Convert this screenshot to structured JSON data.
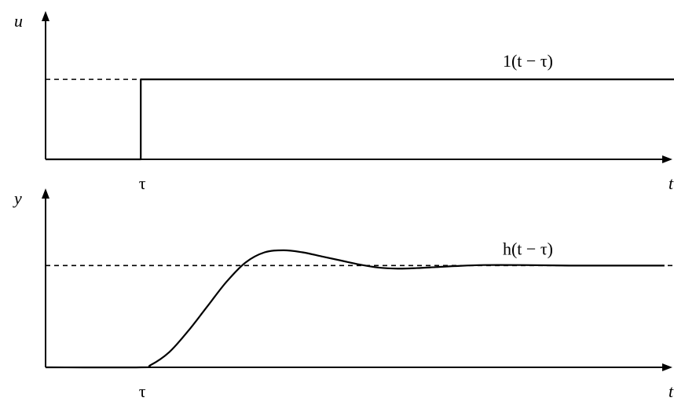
{
  "chart_data": [
    {
      "type": "line",
      "ylabel": "u",
      "xlabel": "t",
      "tick_label": "τ",
      "series_label": "1(t − τ)",
      "shift": 1,
      "x": [
        0,
        1,
        1,
        6.6
      ],
      "y": [
        0,
        0,
        1,
        1
      ],
      "reference_level": 1,
      "xlim": [
        0,
        6.6
      ],
      "ylim": [
        0,
        1.6
      ]
    },
    {
      "type": "line",
      "ylabel": "y",
      "xlabel": "t",
      "tick_label": "τ",
      "series_label": "h(t − τ)",
      "shift": 1,
      "x": [
        0,
        1.0,
        1.1,
        1.3,
        1.5,
        1.7,
        1.9,
        2.1,
        2.3,
        2.5,
        2.7,
        2.9,
        3.1,
        3.3,
        3.5,
        3.7,
        3.9,
        4.1,
        4.3,
        4.6,
        5.0,
        5.5,
        6.0,
        6.5
      ],
      "y": [
        0,
        0,
        0.02,
        0.15,
        0.36,
        0.6,
        0.84,
        1.03,
        1.13,
        1.15,
        1.13,
        1.09,
        1.05,
        1.01,
        0.98,
        0.97,
        0.975,
        0.985,
        0.995,
        1.005,
        1.005,
        1.0,
        1.0,
        1.0
      ],
      "reference_level": 1,
      "xlim": [
        0,
        6.6
      ],
      "ylim": [
        0,
        1.45
      ]
    }
  ]
}
